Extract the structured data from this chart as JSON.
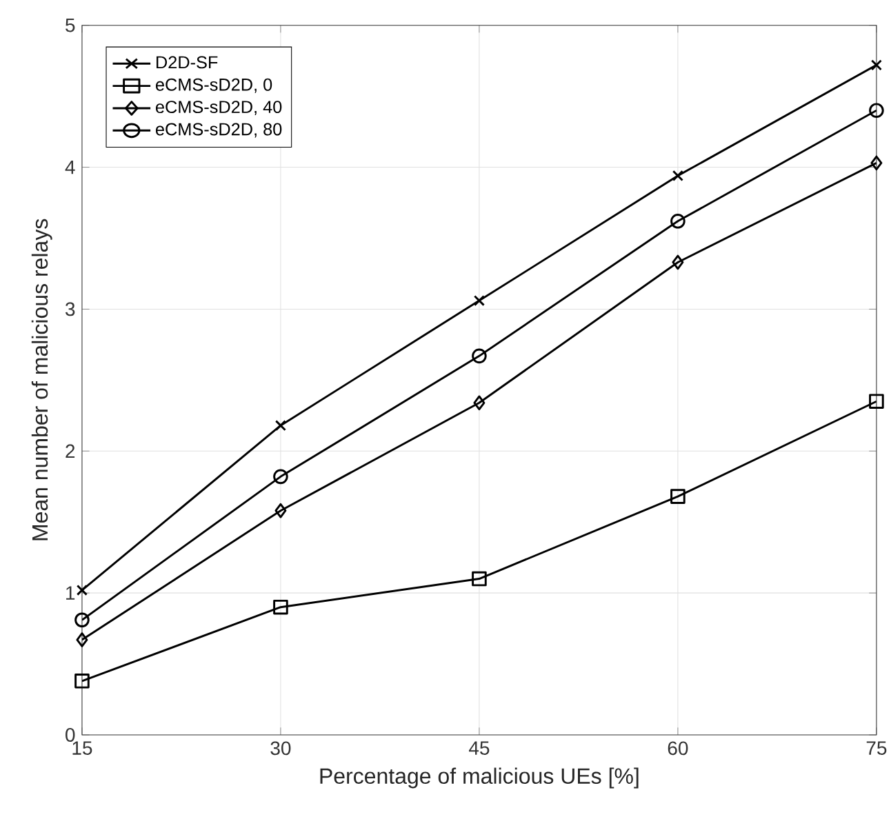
{
  "chart_data": {
    "type": "line",
    "xlabel": "Percentage of malicious UEs [%]",
    "ylabel": "Mean number of malicious relays",
    "x": [
      15,
      30,
      45,
      60,
      75
    ],
    "xlim": [
      15,
      75
    ],
    "xticks": [
      15,
      30,
      45,
      60,
      75
    ],
    "ylim": [
      0,
      5
    ],
    "yticks": [
      0,
      1,
      2,
      3,
      4,
      5
    ],
    "grid": true,
    "legend": "top left",
    "line_style": "solid",
    "series": [
      {
        "name": "D2D-SF",
        "color": "#000000",
        "marker": "cross",
        "values": [
          1.02,
          2.18,
          3.06,
          3.94,
          4.72
        ]
      },
      {
        "name": "eCMS-sD2D, 0",
        "color": "#000000",
        "marker": "square",
        "values": [
          0.38,
          0.9,
          1.1,
          1.68,
          2.35
        ]
      },
      {
        "name": "eCMS-sD2D, 40",
        "color": "#000000",
        "marker": "diamond",
        "values": [
          0.67,
          1.58,
          2.34,
          3.33,
          4.03
        ]
      },
      {
        "name": "eCMS-sD2D, 80",
        "color": "#000000",
        "marker": "circle",
        "values": [
          0.81,
          1.82,
          2.67,
          3.62,
          4.4
        ]
      }
    ]
  }
}
